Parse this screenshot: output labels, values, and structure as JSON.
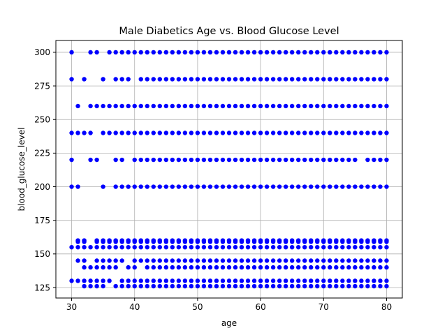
{
  "chart_data": {
    "type": "scatter",
    "title": "Male Diabetics Age vs. Blood Glucose Level",
    "xlabel": "age",
    "ylabel": "blood_glucose_level",
    "xlim": [
      27.5,
      82.5
    ],
    "ylim": [
      117.2,
      308.8
    ],
    "xticks": [
      30,
      40,
      50,
      60,
      70,
      80
    ],
    "yticks": [
      125,
      150,
      175,
      200,
      225,
      250,
      275,
      300
    ],
    "grid": true,
    "marker_color": "#0000ff",
    "glucose_levels": [
      126,
      130,
      140,
      145,
      155,
      159,
      160,
      200,
      220,
      240,
      260,
      280,
      300
    ],
    "points": [
      {
        "y": 300,
        "x": [
          30,
          33,
          34,
          36,
          37,
          38,
          39,
          40,
          41,
          42,
          43,
          44,
          45,
          46,
          47,
          48,
          49,
          50,
          51,
          52,
          53,
          54,
          55,
          56,
          57,
          58,
          59,
          60,
          61,
          62,
          63,
          64,
          65,
          66,
          67,
          68,
          69,
          70,
          71,
          72,
          73,
          74,
          75,
          76,
          77,
          78,
          79,
          80
        ]
      },
      {
        "y": 280,
        "x": [
          30,
          32,
          35,
          37,
          38,
          39,
          41,
          42,
          43,
          44,
          45,
          46,
          47,
          48,
          49,
          50,
          51,
          52,
          53,
          54,
          55,
          56,
          57,
          58,
          59,
          60,
          61,
          62,
          63,
          64,
          65,
          66,
          67,
          68,
          69,
          70,
          71,
          72,
          73,
          74,
          75,
          76,
          77,
          78,
          79,
          80
        ]
      },
      {
        "y": 260,
        "x": [
          31,
          33,
          34,
          35,
          36,
          37,
          38,
          39,
          40,
          41,
          42,
          43,
          44,
          45,
          46,
          47,
          48,
          49,
          50,
          51,
          52,
          53,
          54,
          55,
          56,
          57,
          58,
          59,
          60,
          61,
          62,
          63,
          64,
          65,
          66,
          67,
          68,
          69,
          70,
          71,
          72,
          73,
          74,
          75,
          76,
          77,
          78,
          79,
          80
        ]
      },
      {
        "y": 240,
        "x": [
          30,
          31,
          32,
          33,
          35,
          36,
          37,
          38,
          39,
          40,
          41,
          42,
          43,
          44,
          45,
          46,
          47,
          48,
          49,
          50,
          51,
          52,
          53,
          54,
          55,
          56,
          57,
          58,
          59,
          60,
          61,
          62,
          63,
          64,
          65,
          66,
          67,
          68,
          69,
          70,
          71,
          72,
          73,
          74,
          75,
          76,
          77,
          78,
          79,
          80
        ]
      },
      {
        "y": 220,
        "x": [
          30,
          33,
          34,
          37,
          38,
          40,
          41,
          42,
          43,
          44,
          45,
          46,
          47,
          48,
          49,
          50,
          51,
          52,
          53,
          54,
          55,
          56,
          57,
          58,
          59,
          60,
          61,
          62,
          63,
          64,
          65,
          66,
          67,
          68,
          69,
          70,
          71,
          72,
          73,
          74,
          75,
          77,
          78,
          79,
          80
        ]
      },
      {
        "y": 200,
        "x": [
          30,
          31,
          35,
          37,
          38,
          39,
          40,
          41,
          42,
          43,
          44,
          45,
          46,
          47,
          48,
          49,
          50,
          51,
          52,
          53,
          54,
          55,
          56,
          57,
          58,
          59,
          60,
          61,
          62,
          63,
          64,
          65,
          66,
          67,
          68,
          69,
          70,
          71,
          72,
          73,
          74,
          75,
          76,
          77,
          78,
          79,
          80
        ]
      },
      {
        "y": 160,
        "x": [
          31,
          32,
          34,
          35,
          36,
          37,
          38,
          39,
          40,
          41,
          42,
          43,
          44,
          45,
          46,
          47,
          48,
          49,
          50,
          51,
          52,
          53,
          54,
          55,
          56,
          57,
          58,
          59,
          60,
          61,
          62,
          63,
          64,
          65,
          66,
          67,
          68,
          69,
          70,
          71,
          72,
          73,
          74,
          75,
          76,
          77,
          78,
          79,
          80
        ]
      },
      {
        "y": 159,
        "x": [
          31,
          32,
          34,
          35,
          36,
          37,
          38,
          39,
          40,
          41,
          42,
          43,
          44,
          45,
          46,
          47,
          48,
          49,
          50,
          51,
          52,
          53,
          54,
          55,
          56,
          57,
          58,
          59,
          60,
          61,
          62,
          63,
          64,
          65,
          66,
          67,
          68,
          69,
          70,
          71,
          72,
          73,
          74,
          75,
          76,
          77,
          78,
          79,
          80
        ]
      },
      {
        "y": 155,
        "x": [
          30,
          31,
          32,
          33,
          34,
          35,
          36,
          37,
          38,
          39,
          40,
          41,
          42,
          43,
          44,
          45,
          46,
          47,
          48,
          49,
          50,
          51,
          52,
          53,
          54,
          55,
          56,
          57,
          58,
          59,
          60,
          61,
          62,
          63,
          64,
          65,
          66,
          67,
          68,
          69,
          70,
          71,
          72,
          73,
          74,
          75,
          76,
          77,
          78,
          79,
          80
        ]
      },
      {
        "y": 145,
        "x": [
          31,
          32,
          34,
          35,
          36,
          37,
          38,
          40,
          41,
          42,
          43,
          44,
          45,
          46,
          47,
          48,
          49,
          50,
          51,
          52,
          53,
          54,
          55,
          56,
          57,
          58,
          59,
          60,
          61,
          62,
          63,
          64,
          65,
          66,
          67,
          68,
          69,
          70,
          71,
          72,
          73,
          74,
          75,
          76,
          77,
          78,
          79,
          80
        ]
      },
      {
        "y": 140,
        "x": [
          32,
          33,
          34,
          35,
          36,
          37,
          39,
          40,
          42,
          43,
          44,
          45,
          46,
          47,
          48,
          49,
          50,
          51,
          52,
          53,
          54,
          55,
          56,
          57,
          58,
          59,
          60,
          61,
          62,
          63,
          64,
          65,
          66,
          67,
          68,
          69,
          70,
          71,
          72,
          73,
          74,
          75,
          76,
          77,
          78,
          79,
          80
        ]
      },
      {
        "y": 130,
        "x": [
          30,
          31,
          32,
          33,
          34,
          35,
          36,
          38,
          39,
          40,
          41,
          42,
          43,
          44,
          45,
          46,
          47,
          48,
          49,
          50,
          51,
          52,
          53,
          54,
          55,
          56,
          57,
          58,
          59,
          60,
          61,
          62,
          63,
          64,
          65,
          66,
          67,
          68,
          69,
          70,
          71,
          72,
          73,
          74,
          75,
          76,
          77,
          78,
          79,
          80
        ]
      },
      {
        "y": 126,
        "x": [
          32,
          33,
          34,
          35,
          37,
          38,
          39,
          40,
          41,
          42,
          43,
          44,
          45,
          46,
          47,
          48,
          49,
          50,
          51,
          52,
          53,
          54,
          55,
          56,
          57,
          58,
          59,
          60,
          61,
          62,
          63,
          64,
          65,
          66,
          67,
          68,
          69,
          70,
          71,
          72,
          73,
          74,
          75,
          76,
          77,
          78,
          79,
          80
        ]
      }
    ]
  }
}
